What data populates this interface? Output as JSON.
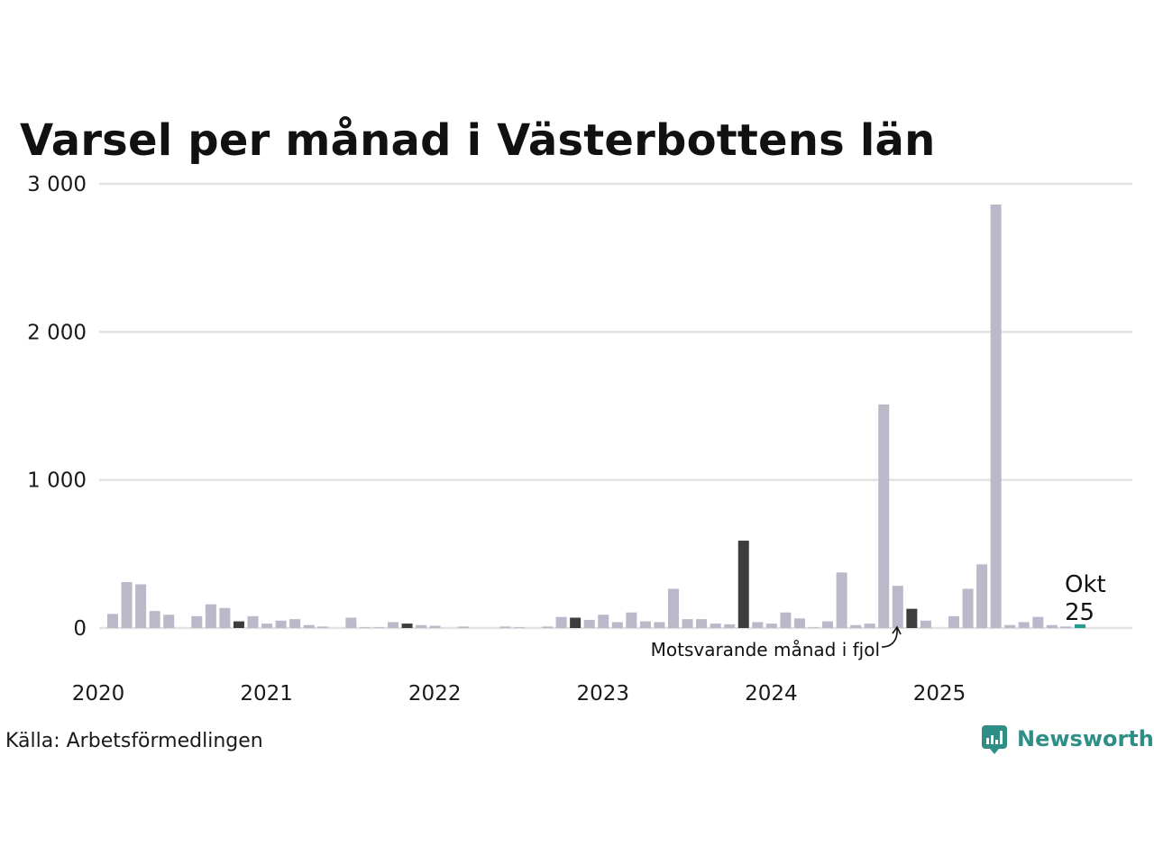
{
  "title": "Varsel per månad i Västerbottens län",
  "source": "Källa: Arbetsförmedlingen",
  "brand": "Newsworthy",
  "colors": {
    "bar": "#b9b9c9",
    "same_month": "#3d3d3d",
    "current": "#239c8f",
    "brand": "#2f8f86"
  },
  "annotations": {
    "same_month_label": "Motsvarande månad i fjol",
    "current_month": "Okt",
    "current_value": "25"
  },
  "chart_data": {
    "type": "bar",
    "title": "Varsel per månad i Västerbottens län",
    "xlabel": "",
    "ylabel": "",
    "ylim": [
      0,
      3000
    ],
    "yticks": [
      0,
      1000,
      2000,
      3000
    ],
    "ytick_labels": [
      "0",
      "1 000",
      "2 000",
      "3 000"
    ],
    "xtick_labels": [
      "2020",
      "2021",
      "2022",
      "2023",
      "2024",
      "2025"
    ],
    "start": "2020-01",
    "months": [
      "2020-01",
      "2020-02",
      "2020-03",
      "2020-04",
      "2020-05",
      "2020-06",
      "2020-07",
      "2020-08",
      "2020-09",
      "2020-10",
      "2020-11",
      "2020-12",
      "2021-01",
      "2021-02",
      "2021-03",
      "2021-04",
      "2021-05",
      "2021-06",
      "2021-07",
      "2021-08",
      "2021-09",
      "2021-10",
      "2021-11",
      "2021-12",
      "2022-01",
      "2022-02",
      "2022-03",
      "2022-04",
      "2022-05",
      "2022-06",
      "2022-07",
      "2022-08",
      "2022-09",
      "2022-10",
      "2022-11",
      "2022-12",
      "2023-01",
      "2023-02",
      "2023-03",
      "2023-04",
      "2023-05",
      "2023-06",
      "2023-07",
      "2023-08",
      "2023-09",
      "2023-10",
      "2023-11",
      "2023-12",
      "2024-01",
      "2024-02",
      "2024-03",
      "2024-04",
      "2024-05",
      "2024-06",
      "2024-07",
      "2024-08",
      "2024-09",
      "2024-10",
      "2024-11",
      "2024-12",
      "2025-01",
      "2025-02",
      "2025-03",
      "2025-04",
      "2025-05",
      "2025-06",
      "2025-07",
      "2025-08",
      "2025-09",
      "2025-10"
    ],
    "values": [
      95,
      310,
      295,
      115,
      90,
      0,
      80,
      160,
      135,
      45,
      80,
      30,
      50,
      60,
      20,
      10,
      0,
      70,
      5,
      5,
      40,
      30,
      20,
      15,
      0,
      10,
      0,
      0,
      10,
      5,
      0,
      10,
      75,
      70,
      55,
      90,
      40,
      105,
      45,
      40,
      265,
      60,
      60,
      30,
      25,
      590,
      40,
      30,
      105,
      65,
      5,
      45,
      375,
      20,
      30,
      1510,
      285,
      130,
      50,
      0,
      80,
      265,
      430,
      2860,
      20,
      40,
      75,
      20,
      10,
      25
    ],
    "highlight_same_month_index": [
      9,
      21,
      33,
      45,
      57
    ],
    "highlight_current_index": 69
  }
}
